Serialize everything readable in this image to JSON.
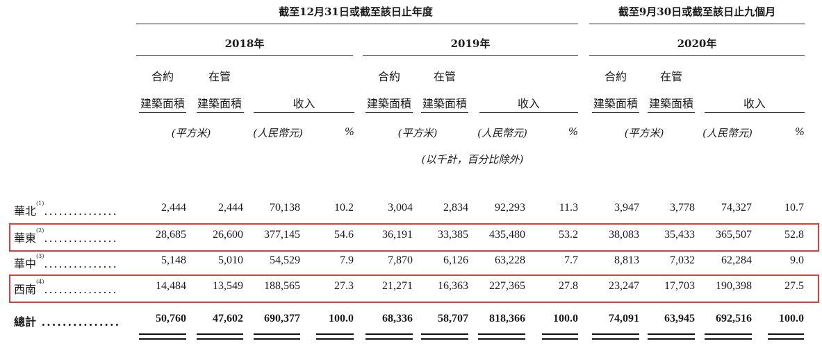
{
  "header": {
    "annual_title": "截至12月31日或截至該日止年度",
    "interim_title": "截至9月30日或截至該日止九個月",
    "years": [
      "2018年",
      "2019年",
      "2020年"
    ],
    "col_contract_top": "合約",
    "col_contract_bottom": "建築面積",
    "col_managed_top": "在管",
    "col_managed_bottom": "建築面積",
    "col_revenue": "收入",
    "unit_area": "(平方米)",
    "unit_rmb": "(人民幣元)",
    "unit_pct": "%",
    "note": "(以千計，百分比除外)"
  },
  "rows": [
    {
      "region": "華北",
      "note": "(1)",
      "dots": "...............",
      "values": [
        "2,444",
        "2,444",
        "70,138",
        "10.2",
        "3,004",
        "2,834",
        "92,293",
        "11.3",
        "3,947",
        "3,778",
        "74,327",
        "10.7"
      ]
    },
    {
      "region": "華東",
      "note": "(2)",
      "dots": "...............",
      "values": [
        "28,685",
        "26,600",
        "377,145",
        "54.6",
        "36,191",
        "33,385",
        "435,480",
        "53.2",
        "38,083",
        "35,433",
        "365,507",
        "52.8"
      ]
    },
    {
      "region": "華中",
      "note": "(3)",
      "dots": "...............",
      "values": [
        "5,148",
        "5,010",
        "54,529",
        "7.9",
        "7,870",
        "6,126",
        "63,228",
        "7.7",
        "8,813",
        "7,032",
        "62,284",
        "9.0"
      ]
    },
    {
      "region": "西南",
      "note": "(4)",
      "dots": "...............",
      "values": [
        "14,484",
        "13,549",
        "188,565",
        "27.3",
        "21,271",
        "16,363",
        "227,365",
        "27.8",
        "23,247",
        "17,703",
        "190,398",
        "27.5"
      ]
    }
  ],
  "total": {
    "label": "總計",
    "dots": "...............",
    "values": [
      "50,760",
      "47,602",
      "690,377",
      "100.0",
      "68,336",
      "58,707",
      "818,366",
      "100.0",
      "74,091",
      "63,945",
      "692,516",
      "100.0"
    ]
  },
  "highlight_color": "#e03b3b"
}
